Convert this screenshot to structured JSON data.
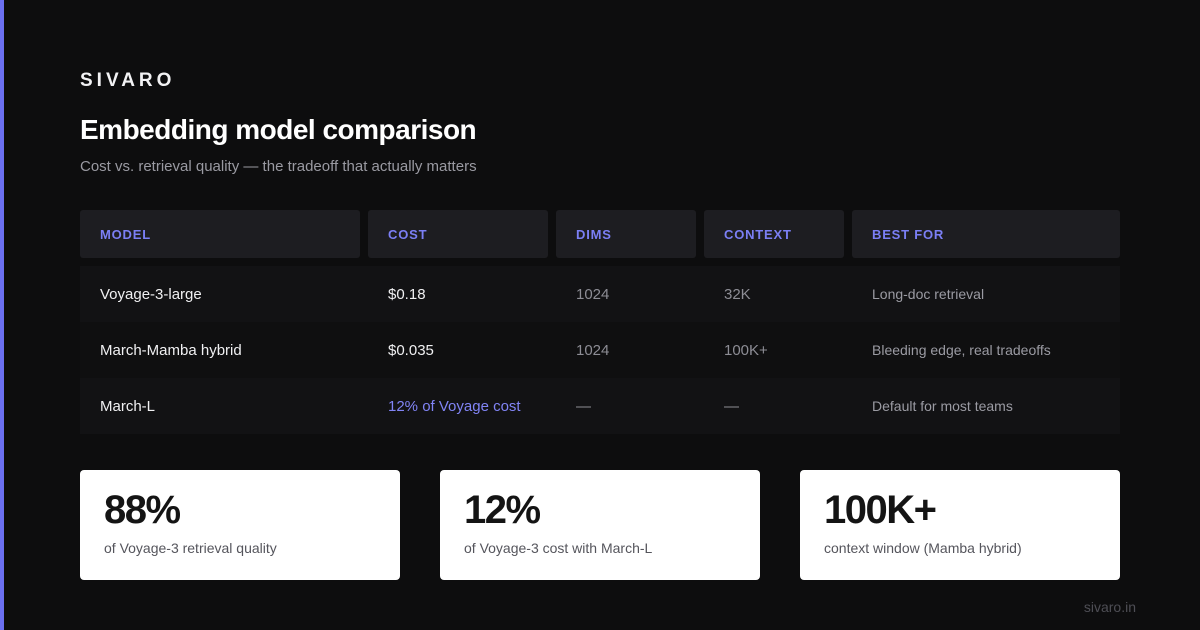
{
  "brand": "SIVARO",
  "title": "Embedding model comparison",
  "subtitle": "Cost vs. retrieval quality — the tradeoff that actually matters",
  "table": {
    "headers": [
      "Model",
      "Cost",
      "Dims",
      "Context",
      "Best for"
    ],
    "rows": [
      {
        "model": "Voyage-3-large",
        "cost": "$0.18",
        "dims": "1024",
        "context": "32K",
        "best_for": "Long-doc retrieval"
      },
      {
        "model": "March-Mamba hybrid",
        "cost": "$0.035",
        "dims": "1024",
        "context": "100K+",
        "best_for": "Bleeding edge, real tradeoffs"
      },
      {
        "model": "March-L",
        "cost": "12% of Voyage cost",
        "dims": "—",
        "context": "—",
        "best_for": "Default for most teams"
      }
    ]
  },
  "stats": [
    {
      "value": "88%",
      "label": "of Voyage-3 retrieval quality"
    },
    {
      "value": "12%",
      "label": "of Voyage-3 cost with March-L"
    },
    {
      "value": "100K+",
      "label": "context window (Mamba hybrid)"
    }
  ],
  "footer": "sivaro.in",
  "colors": {
    "accent": "#6b6ff0",
    "background": "#0d0d0e",
    "header_text": "#7b7ff5",
    "card_bg": "#ffffff"
  }
}
